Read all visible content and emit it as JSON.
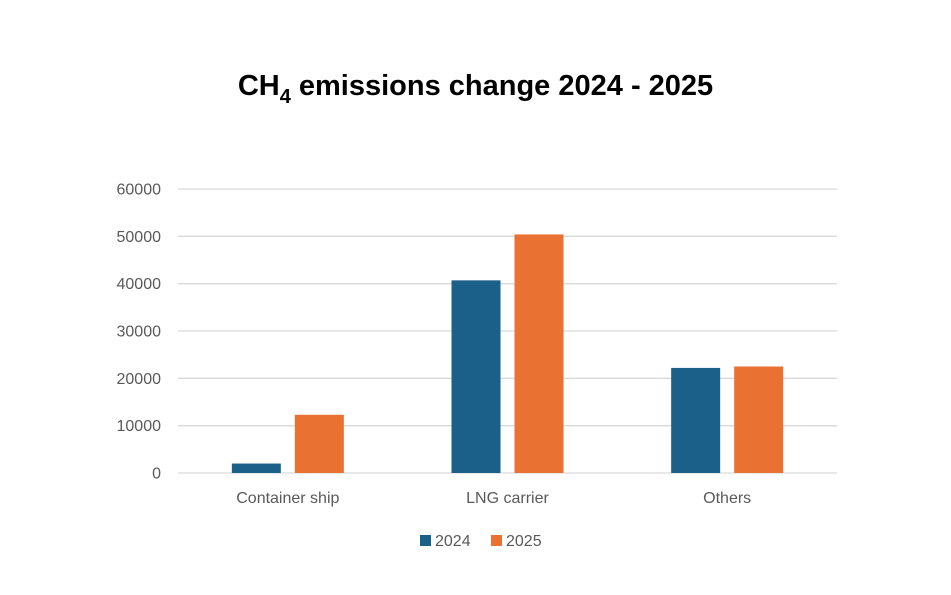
{
  "chart_data": {
    "type": "bar",
    "title_main": "CH",
    "title_subscript": "4",
    "title_rest": " emissions change 2024 - 2025",
    "xlabel": "",
    "ylabel": "",
    "categories": [
      "Container ship",
      "LNG carrier",
      "Others"
    ],
    "series": [
      {
        "name": "2024",
        "color": "#1b6088",
        "values": [
          2000,
          40700,
          22200
        ]
      },
      {
        "name": "2025",
        "color": "#e97132",
        "values": [
          12300,
          50400,
          22500
        ]
      }
    ],
    "ylim": [
      0,
      60000
    ],
    "yticks": [
      0,
      10000,
      20000,
      30000,
      40000,
      50000,
      60000
    ],
    "grid": true,
    "legend_position": "bottom"
  }
}
